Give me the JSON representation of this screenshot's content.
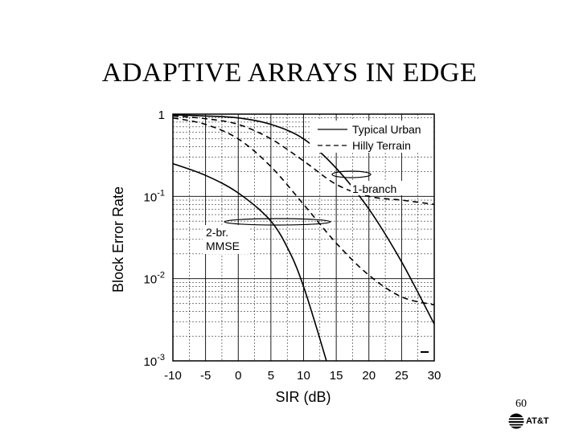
{
  "slide": {
    "title": "ADAPTIVE ARRAYS IN EDGE",
    "page_number": "60",
    "logo_text": "AT&T"
  },
  "chart_data": {
    "type": "line",
    "title": "",
    "xlabel": "SIR (dB)",
    "ylabel": "Block Error Rate",
    "xlim": [
      -10,
      30
    ],
    "ylim": [
      0.001,
      1
    ],
    "y_scale": "log",
    "grid": true,
    "x_ticks": [
      "-10",
      "-5",
      "0",
      "5",
      "10",
      "15",
      "20",
      "25",
      "30"
    ],
    "x_tick_values": [
      -10,
      -5,
      0,
      5,
      10,
      15,
      20,
      25,
      30
    ],
    "y_ticks": [
      {
        "value": 1,
        "base": "1",
        "exp": ""
      },
      {
        "value": 0.1,
        "base": "10",
        "exp": "-1"
      },
      {
        "value": 0.01,
        "base": "10",
        "exp": "-2"
      },
      {
        "value": 0.001,
        "base": "10",
        "exp": "-3"
      }
    ],
    "legend": {
      "placement": "top-right",
      "entries": [
        {
          "label": "Typical Urban",
          "style": "solid"
        },
        {
          "label": "Hilly Terrain",
          "style": "dashed"
        }
      ]
    },
    "annotations": [
      {
        "text": "1-branch",
        "at": [
          18,
          0.1
        ]
      },
      {
        "text": "2-br.",
        "at": [
          -5,
          0.05
        ]
      },
      {
        "text": "MMSE",
        "at": [
          -5,
          0.03
        ]
      }
    ],
    "series": [
      {
        "name": "1-branch Typical Urban",
        "style": "solid",
        "points": [
          [
            -10,
            0.98
          ],
          [
            -5,
            0.95
          ],
          [
            0,
            0.9
          ],
          [
            5,
            0.75
          ],
          [
            10,
            0.5
          ],
          [
            15,
            0.22
          ],
          [
            20,
            0.07
          ],
          [
            25,
            0.016
          ],
          [
            30,
            0.0028
          ]
        ]
      },
      {
        "name": "1-branch Hilly Terrain",
        "style": "dashed",
        "points": [
          [
            -10,
            0.95
          ],
          [
            -5,
            0.88
          ],
          [
            0,
            0.75
          ],
          [
            5,
            0.5
          ],
          [
            10,
            0.27
          ],
          [
            15,
            0.14
          ],
          [
            20,
            0.1
          ],
          [
            25,
            0.09
          ],
          [
            30,
            0.08
          ]
        ]
      },
      {
        "name": "2-br. MMSE Typical Urban",
        "style": "solid",
        "points": [
          [
            -10,
            0.25
          ],
          [
            -5,
            0.18
          ],
          [
            0,
            0.11
          ],
          [
            5,
            0.05
          ],
          [
            8,
            0.02
          ],
          [
            10,
            0.008
          ],
          [
            12,
            0.0025
          ],
          [
            13.5,
            0.001
          ]
        ]
      },
      {
        "name": "2-br. MMSE Hilly Terrain",
        "style": "dashed",
        "points": [
          [
            -10,
            0.9
          ],
          [
            -5,
            0.75
          ],
          [
            0,
            0.5
          ],
          [
            5,
            0.23
          ],
          [
            10,
            0.08
          ],
          [
            15,
            0.027
          ],
          [
            20,
            0.011
          ],
          [
            25,
            0.006
          ],
          [
            30,
            0.0048
          ]
        ]
      }
    ]
  }
}
